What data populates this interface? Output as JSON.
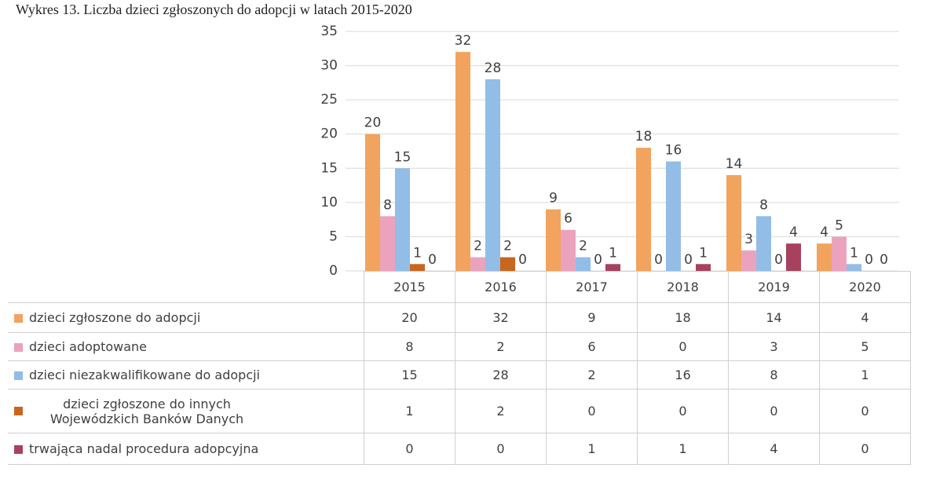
{
  "chart_data": {
    "type": "bar",
    "title": "Wykres 13. Liczba dzieci zgłoszonych do adopcji w latach 2015-2020",
    "categories": [
      "2015",
      "2016",
      "2017",
      "2018",
      "2019",
      "2020"
    ],
    "series": [
      {
        "name": "dzieci zgłoszone do adopcji",
        "color": "#f2a35e",
        "values": [
          20,
          32,
          9,
          18,
          14,
          4
        ]
      },
      {
        "name": "dzieci adoptowane",
        "color": "#eba3bd",
        "values": [
          8,
          2,
          6,
          0,
          3,
          5
        ]
      },
      {
        "name": "dzieci niezakwalifikowane do adopcji",
        "color": "#92bde6",
        "values": [
          15,
          28,
          2,
          16,
          8,
          1
        ]
      },
      {
        "name": "dzieci zgłoszone do innych Wojewódzkich Banków Danych",
        "color": "#c8661f",
        "values": [
          1,
          2,
          0,
          0,
          0,
          0
        ]
      },
      {
        "name": "trwająca nadal procedura adopcyjna",
        "color": "#a8415e",
        "values": [
          0,
          0,
          1,
          1,
          4,
          0
        ]
      }
    ],
    "ylim": [
      0,
      35
    ],
    "yticks": [
      0,
      5,
      10,
      15,
      20,
      25,
      30,
      35
    ],
    "grid": true
  }
}
